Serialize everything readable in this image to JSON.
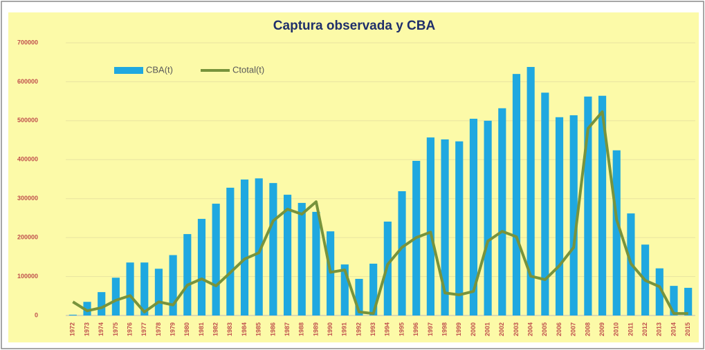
{
  "chart_data": {
    "type": "bar",
    "title": "Captura observada y CBA",
    "categories": [
      "1972",
      "1973",
      "1974",
      "1975",
      "1976",
      "1977",
      "1978",
      "1979",
      "1980",
      "1981",
      "1982",
      "1983",
      "1984",
      "1985",
      "1986",
      "1987",
      "1988",
      "1989",
      "1990",
      "1991",
      "1992",
      "1993",
      "1994",
      "1995",
      "1996",
      "1997",
      "1998",
      "1999",
      "2000",
      "2001",
      "2002",
      "2003",
      "2004",
      "2005",
      "2006",
      "2007",
      "2008",
      "2009",
      "2010",
      "2011",
      "2012",
      "2013",
      "2014",
      "2015"
    ],
    "series": [
      {
        "name": "CBA(t)",
        "type": "bar",
        "color": "#1fa8e0",
        "values": [
          2000,
          35000,
          60000,
          97000,
          136000,
          136000,
          120000,
          155000,
          209000,
          248000,
          287000,
          328000,
          349000,
          352000,
          340000,
          310000,
          289000,
          266000,
          216000,
          131000,
          94000,
          133000,
          241000,
          319000,
          397000,
          457000,
          452000,
          447000,
          505000,
          500000,
          532000,
          620000,
          638000,
          572000,
          509000,
          514000,
          562000,
          564000,
          424000,
          262000,
          182000,
          121000,
          76000,
          71000
        ]
      },
      {
        "name": "Ctotal(t)",
        "type": "line",
        "color": "#77933c",
        "values": [
          35000,
          12000,
          20000,
          39000,
          51000,
          9000,
          35000,
          27000,
          78000,
          94000,
          76000,
          110000,
          145000,
          161000,
          243000,
          273000,
          260000,
          292000,
          111000,
          117000,
          9000,
          5000,
          131000,
          175000,
          200000,
          214000,
          58000,
          53000,
          62000,
          191000,
          216000,
          202000,
          101000,
          92000,
          128000,
          175000,
          480000,
          523000,
          246000,
          133000,
          90000,
          74000,
          5000,
          5000
        ]
      }
    ],
    "ylim": [
      0,
      700000
    ],
    "yticks": [
      0,
      100000,
      200000,
      300000,
      400000,
      500000,
      600000,
      700000
    ],
    "grid": true
  }
}
